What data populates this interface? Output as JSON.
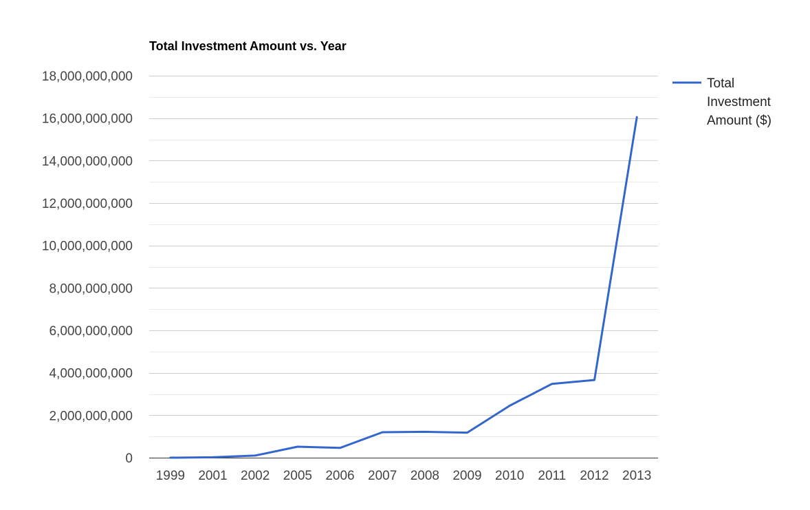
{
  "chart_data": {
    "type": "line",
    "title": "Total Investment Amount vs. Year",
    "xlabel": "",
    "ylabel": "",
    "categories": [
      "1999",
      "2001",
      "2002",
      "2005",
      "2006",
      "2007",
      "2008",
      "2009",
      "2010",
      "2011",
      "2012",
      "2013"
    ],
    "series": [
      {
        "name": "Total Investment Amount ($)",
        "color": "#3366cc",
        "values": [
          0,
          20000000,
          100000000,
          520000000,
          460000000,
          1200000000,
          1220000000,
          1180000000,
          2450000000,
          3480000000,
          3660000000,
          16050000000
        ]
      }
    ],
    "ylim": [
      0,
      18000000000
    ],
    "yticks": [
      0,
      2000000000,
      4000000000,
      6000000000,
      8000000000,
      10000000000,
      12000000000,
      14000000000,
      16000000000,
      18000000000
    ],
    "ytick_labels": [
      "0",
      "2,000,000,000",
      "4,000,000,000",
      "6,000,000,000",
      "8,000,000,000",
      "10,000,000,000",
      "12,000,000,000",
      "14,000,000,000",
      "16,000,000,000",
      "18,000,000,000"
    ],
    "grid": true,
    "legend": "right",
    "legend_lines": [
      "Total",
      "Investment",
      "Amount ($)"
    ]
  }
}
